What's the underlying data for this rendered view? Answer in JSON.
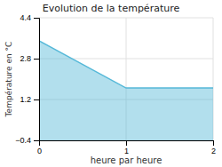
{
  "chart_data": {
    "type": "area",
    "title": "Evolution de la température",
    "xlabel": "heure par heure",
    "ylabel": "Température en °C",
    "x": [
      0,
      1,
      2
    ],
    "values": [
      3.5,
      1.65,
      1.65
    ],
    "color": "#55b8d8",
    "xlim": [
      0,
      2
    ],
    "xticks": [
      0,
      1,
      2
    ],
    "ylim": [
      -0.4,
      4.4
    ],
    "yticks": [
      {
        "value": -0.4,
        "label": "−0.4"
      },
      1.2,
      2.8,
      4.4
    ],
    "grid": true
  }
}
